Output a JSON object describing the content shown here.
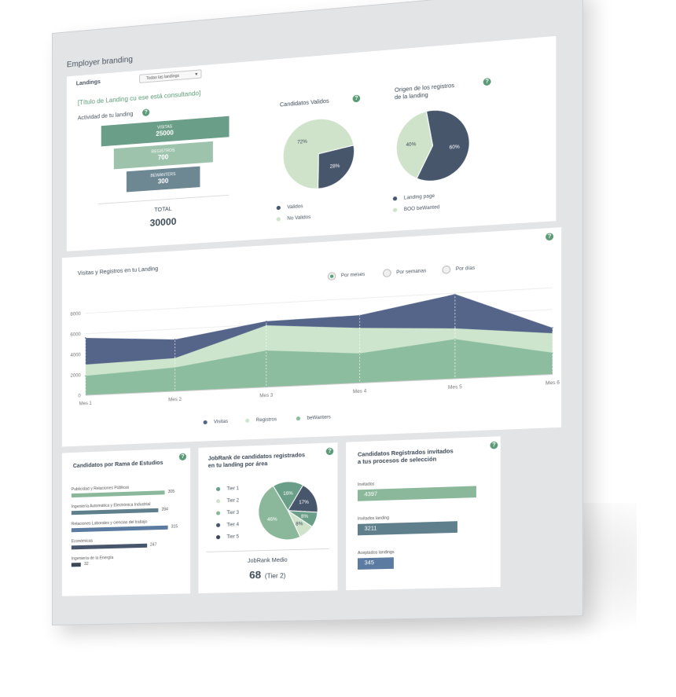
{
  "app": {
    "title": "Employer branding"
  },
  "filter": {
    "label": "Landings",
    "selected": "Todas las landings"
  },
  "summary": {
    "landing_title": "[Título de Landing cu ese está consultando]",
    "activity_label": "Actividad de tu landing",
    "funnel": [
      {
        "label": "VISITAS",
        "value": "25000",
        "color": "#6a9e88"
      },
      {
        "label": "REGISTROS",
        "value": "700",
        "color": "#9ec3ac"
      },
      {
        "label": "BEWANTERS",
        "value": "300",
        "color": "#6d8793"
      }
    ],
    "total_label": "TOTAL",
    "total_value": "30000"
  },
  "valid_pie": {
    "title": "Candidatos Validos",
    "slices": [
      {
        "name": "Validos",
        "percent": 28,
        "label": "28%",
        "color": "#48566c"
      },
      {
        "name": "No Validos",
        "percent": 72,
        "label": "72%",
        "color": "#cfe3cb"
      }
    ]
  },
  "origin_pie": {
    "title_line1": "Origen de los registros",
    "title_line2": "de la landing",
    "slices": [
      {
        "name": "Landing page",
        "percent": 60,
        "label": "60%",
        "color": "#48566c"
      },
      {
        "name": "BOO beWanted",
        "percent": 40,
        "label": "40%",
        "color": "#cfe3cb"
      }
    ]
  },
  "area_chart": {
    "title": "Visitas y Registros en tu Landing",
    "toggles": [
      {
        "label": "Por meses",
        "selected": true
      },
      {
        "label": "Por semanas",
        "selected": false
      },
      {
        "label": "Por días",
        "selected": false
      }
    ]
  },
  "studies": {
    "title": "Candidatos por Rama de Estudios",
    "bars": [
      {
        "label": "Publicidad y Relaciones Públicas",
        "value": 305,
        "color": "#8bb89b"
      },
      {
        "label": "Ingeniería Automática y Electrónica Industrial",
        "value": 284,
        "color": "#5f7f8c"
      },
      {
        "label": "Relaciones Laborales y ciencias del trabajo",
        "value": 315,
        "color": "#5b7ba0"
      },
      {
        "label": "Económicas",
        "value": 247,
        "color": "#48566c"
      },
      {
        "label": "Ingeniería de la Energía",
        "value": 32,
        "color": "#3d4656"
      }
    ]
  },
  "jobrank": {
    "title_line1": "JobRank de candidatos registrados",
    "title_line2": "en tu landing por área",
    "tiers": [
      {
        "name": "Tier 1",
        "percent": 16,
        "label": "16%",
        "color": "#6a9e88"
      },
      {
        "name": "Tier 2",
        "percent": 17,
        "label": "17%",
        "color": "#48566c"
      },
      {
        "name": "Tier 3",
        "percent": 8,
        "label": "8%",
        "color": "#6a9e88"
      },
      {
        "name": "Tier 4",
        "percent": 8,
        "label": "8%",
        "color": "#cfe3cb"
      },
      {
        "name": "Tier 5",
        "percent": 46,
        "label": "46%",
        "color": "#8bb89b"
      }
    ],
    "legend_colors": [
      "#6a9e88",
      "#cfe3cb",
      "#8bb89b",
      "#48566c",
      "#3d4656"
    ],
    "medio_label": "JobRank Medio",
    "medio_value": "68",
    "medio_tier": "(Tier 2)"
  },
  "invited": {
    "title_line1": "Candidatos Registrados invitados",
    "title_line2": "a tus procesos de selección",
    "bars": [
      {
        "label": "Invitados",
        "value": "4397",
        "fill": 1.0,
        "color": "#8bb89b"
      },
      {
        "label": "Invitados landing",
        "value": "3211",
        "fill": 0.84,
        "color": "#5f7f8c"
      },
      {
        "label": "Aceptados landings",
        "value": "345",
        "fill": 0.31,
        "color": "#5b7ba0"
      }
    ]
  },
  "chart_data": {
    "type": "area",
    "title": "Visitas y Registros en tu Landing",
    "categories": [
      "Mes 1",
      "Mes 2",
      "Mes 3",
      "Mes 4",
      "Mes 5",
      "Mes 6"
    ],
    "ylim": [
      0,
      8000
    ],
    "yticks": [
      0,
      2000,
      4000,
      6000,
      8000
    ],
    "grid": true,
    "legend": "bottom",
    "series": [
      {
        "name": "Visitas",
        "color": "#55658a",
        "values": [
          5600,
          5000,
          6300,
          6400,
          7900,
          4300
        ]
      },
      {
        "name": "Registros",
        "color": "#cde5cc",
        "values": [
          3000,
          3200,
          5900,
          5200,
          4700,
          3800
        ]
      },
      {
        "name": "beWanters",
        "color": "#8dbd9f",
        "values": [
          1900,
          2300,
          3500,
          2800,
          3700,
          2000
        ]
      }
    ]
  }
}
